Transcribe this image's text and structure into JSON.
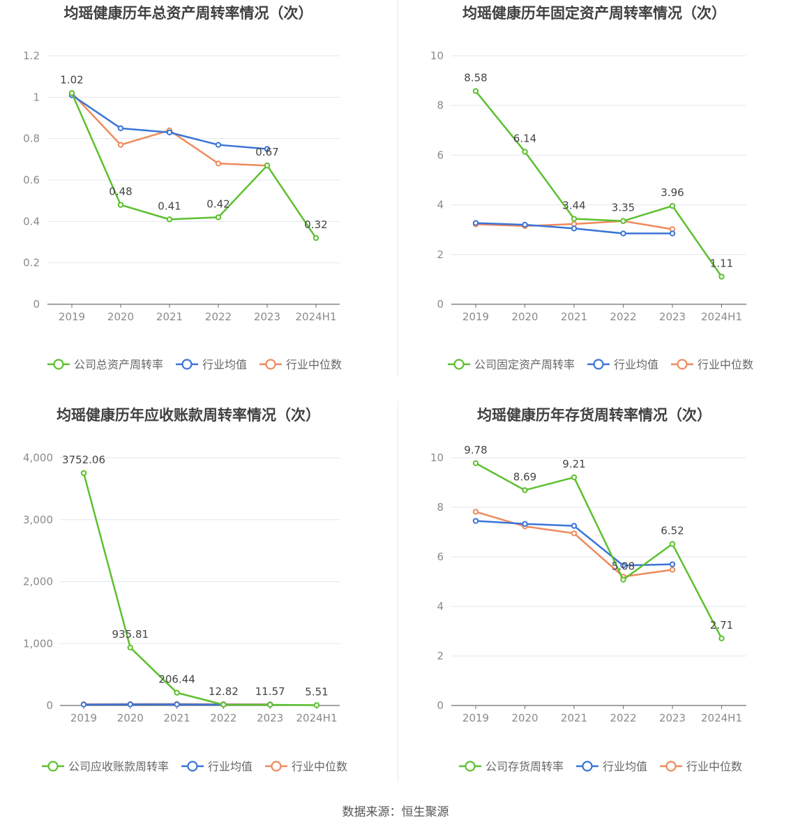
{
  "colors": {
    "company": "#5cc02e",
    "industry_avg": "#3a74d8",
    "industry_median": "#ee8a5c",
    "axis": "#6e6e6e",
    "grid": "#e3e6ef",
    "label": "#444444",
    "tick": "#8a8a8a",
    "title": "#404040"
  },
  "source_label": "数据来源：恒生聚源",
  "chart_data": [
    {
      "type": "line",
      "title": "均瑶健康历年总资产周转率情况（次）",
      "categories": [
        "2019",
        "2020",
        "2021",
        "2022",
        "2023",
        "2024H1"
      ],
      "ylim": [
        0,
        1.2
      ],
      "yticks": [
        0,
        0.2,
        0.4,
        0.6,
        0.8,
        1,
        1.2
      ],
      "ytick_labels": [
        "0",
        "0.2",
        "0.4",
        "0.6",
        "0.8",
        "1",
        "1.2"
      ],
      "grid": true,
      "legend_position": "bottom",
      "series": [
        {
          "name": "公司总资产周转率",
          "color": "#5cc02e",
          "values": [
            1.02,
            0.48,
            0.41,
            0.42,
            0.67,
            0.32
          ],
          "labels": [
            "1.02",
            "0.48",
            "0.41",
            "0.42",
            "0.67",
            "0.32"
          ]
        },
        {
          "name": "行业均值",
          "color": "#3a74d8",
          "values": [
            1.01,
            0.85,
            0.83,
            0.77,
            0.75,
            null
          ]
        },
        {
          "name": "行业中位数",
          "color": "#ee8a5c",
          "values": [
            1.02,
            0.77,
            0.84,
            0.68,
            0.67,
            null
          ]
        }
      ]
    },
    {
      "type": "line",
      "title": "均瑶健康历年固定资产周转率情况（次）",
      "categories": [
        "2019",
        "2020",
        "2021",
        "2022",
        "2023",
        "2024H1"
      ],
      "ylim": [
        0,
        10
      ],
      "yticks": [
        0,
        2,
        4,
        6,
        8,
        10
      ],
      "ytick_labels": [
        "0",
        "2",
        "4",
        "6",
        "8",
        "10"
      ],
      "grid": true,
      "legend_position": "bottom",
      "series": [
        {
          "name": "公司固定资产周转率",
          "color": "#5cc02e",
          "values": [
            8.58,
            6.14,
            3.44,
            3.35,
            3.96,
            1.11
          ],
          "labels": [
            "8.58",
            "6.14",
            "3.44",
            "3.35",
            "3.96",
            "1.11"
          ]
        },
        {
          "name": "行业均值",
          "color": "#3a74d8",
          "values": [
            3.27,
            3.2,
            3.05,
            2.85,
            2.85,
            null
          ]
        },
        {
          "name": "行业中位数",
          "color": "#ee8a5c",
          "values": [
            3.22,
            3.15,
            3.23,
            3.35,
            3.02,
            null
          ]
        }
      ]
    },
    {
      "type": "line",
      "title": "均瑶健康历年应收账款周转率情况（次）",
      "categories": [
        "2019",
        "2020",
        "2021",
        "2022",
        "2023",
        "2024H1"
      ],
      "ylim": [
        0,
        4000
      ],
      "yticks": [
        0,
        1000,
        2000,
        3000,
        4000
      ],
      "ytick_labels": [
        "0",
        "1,000",
        "2,000",
        "3,000",
        "4,000"
      ],
      "grid": true,
      "legend_position": "bottom",
      "series": [
        {
          "name": "公司应收账款周转率",
          "color": "#5cc02e",
          "values": [
            3752.06,
            935.81,
            206.44,
            12.82,
            11.57,
            5.51
          ],
          "labels": [
            "3752.06",
            "935.81",
            "206.44",
            "12.82",
            "11.57",
            "5.51"
          ]
        },
        {
          "name": "行业均值",
          "color": "#3a74d8",
          "values": [
            15,
            18,
            18,
            14,
            14,
            null
          ]
        },
        {
          "name": "行业中位数",
          "color": "#ee8a5c",
          "values": [
            20,
            22,
            24,
            20,
            18,
            null
          ]
        }
      ]
    },
    {
      "type": "line",
      "title": "均瑶健康历年存货周转率情况（次）",
      "categories": [
        "2019",
        "2020",
        "2021",
        "2022",
        "2023",
        "2024H1"
      ],
      "ylim": [
        0,
        10
      ],
      "yticks": [
        0,
        2,
        4,
        6,
        8,
        10
      ],
      "ytick_labels": [
        "0",
        "2",
        "4",
        "6",
        "8",
        "10"
      ],
      "grid": true,
      "legend_position": "bottom",
      "series": [
        {
          "name": "公司存货周转率",
          "color": "#5cc02e",
          "values": [
            9.78,
            8.69,
            9.21,
            5.08,
            6.52,
            2.71
          ],
          "labels": [
            "9.78",
            "8.69",
            "9.21",
            "5.08",
            "6.52",
            "2.71"
          ]
        },
        {
          "name": "行业均值",
          "color": "#3a74d8",
          "values": [
            7.45,
            7.33,
            7.25,
            5.65,
            5.7,
            null
          ]
        },
        {
          "name": "行业中位数",
          "color": "#ee8a5c",
          "values": [
            7.82,
            7.23,
            6.95,
            5.2,
            5.48,
            null
          ]
        }
      ]
    }
  ]
}
